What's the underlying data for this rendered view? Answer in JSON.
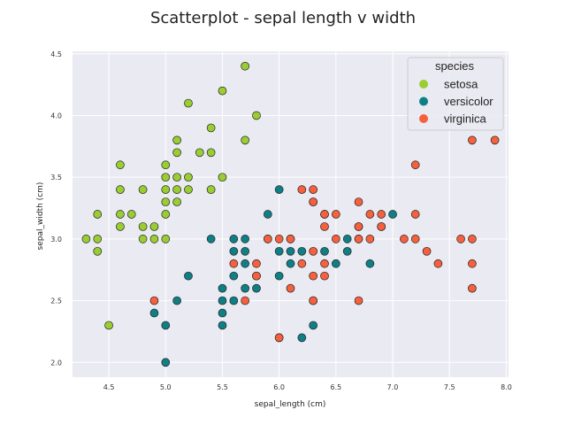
{
  "chart_data": {
    "type": "scatter",
    "title": "Scatterplot - sepal length v width",
    "xlabel": "sepal_length (cm)",
    "ylabel": "sepal_width (cm)",
    "xlim": [
      4.18,
      8.02
    ],
    "ylim": [
      1.88,
      4.52
    ],
    "xticks": [
      "4.5",
      "5.0",
      "5.5",
      "6.0",
      "6.5",
      "7.0",
      "7.5",
      "8.0"
    ],
    "yticks": [
      "2.0",
      "2.5",
      "3.0",
      "3.5",
      "4.0",
      "4.5"
    ],
    "grid": true,
    "legend": {
      "title": "species",
      "placement": "top-right"
    },
    "series": [
      {
        "name": "setosa",
        "color": "#9acd32",
        "points": [
          [
            4.3,
            3.0
          ],
          [
            4.4,
            3.0
          ],
          [
            4.4,
            2.9
          ],
          [
            4.4,
            3.2
          ],
          [
            4.5,
            2.3
          ],
          [
            4.6,
            3.1
          ],
          [
            4.6,
            3.4
          ],
          [
            4.6,
            3.6
          ],
          [
            4.6,
            3.2
          ],
          [
            4.7,
            3.2
          ],
          [
            4.8,
            3.4
          ],
          [
            4.8,
            3.0
          ],
          [
            4.8,
            3.1
          ],
          [
            4.9,
            3.0
          ],
          [
            4.9,
            3.1
          ],
          [
            5.0,
            3.6
          ],
          [
            5.0,
            3.4
          ],
          [
            5.0,
            3.0
          ],
          [
            5.0,
            3.5
          ],
          [
            5.0,
            3.2
          ],
          [
            5.0,
            3.3
          ],
          [
            5.1,
            3.5
          ],
          [
            5.1,
            3.8
          ],
          [
            5.1,
            3.7
          ],
          [
            5.1,
            3.3
          ],
          [
            5.1,
            3.4
          ],
          [
            5.2,
            3.5
          ],
          [
            5.2,
            3.4
          ],
          [
            5.2,
            4.1
          ],
          [
            5.3,
            3.7
          ],
          [
            5.4,
            3.9
          ],
          [
            5.4,
            3.7
          ],
          [
            5.4,
            3.4
          ],
          [
            5.5,
            4.2
          ],
          [
            5.5,
            3.5
          ],
          [
            5.7,
            4.4
          ],
          [
            5.7,
            3.8
          ],
          [
            5.8,
            4.0
          ]
        ]
      },
      {
        "name": "versicolor",
        "color": "#0f7f86",
        "points": [
          [
            4.9,
            2.4
          ],
          [
            5.0,
            2.0
          ],
          [
            5.0,
            2.3
          ],
          [
            5.1,
            2.5
          ],
          [
            5.2,
            2.7
          ],
          [
            5.4,
            3.0
          ],
          [
            5.5,
            2.3
          ],
          [
            5.5,
            2.4
          ],
          [
            5.5,
            2.5
          ],
          [
            5.5,
            2.6
          ],
          [
            5.6,
            2.9
          ],
          [
            5.6,
            3.0
          ],
          [
            5.6,
            2.5
          ],
          [
            5.6,
            2.7
          ],
          [
            5.7,
            2.8
          ],
          [
            5.7,
            2.6
          ],
          [
            5.7,
            3.0
          ],
          [
            5.7,
            2.9
          ],
          [
            5.8,
            2.7
          ],
          [
            5.8,
            2.6
          ],
          [
            5.9,
            3.0
          ],
          [
            5.9,
            3.2
          ],
          [
            6.0,
            2.2
          ],
          [
            6.0,
            2.9
          ],
          [
            6.0,
            2.7
          ],
          [
            6.0,
            3.4
          ],
          [
            6.1,
            2.9
          ],
          [
            6.1,
            2.8
          ],
          [
            6.1,
            3.0
          ],
          [
            6.2,
            2.2
          ],
          [
            6.2,
            2.9
          ],
          [
            6.3,
            3.3
          ],
          [
            6.3,
            2.5
          ],
          [
            6.3,
            2.3
          ],
          [
            6.4,
            2.9
          ],
          [
            6.4,
            3.2
          ],
          [
            6.5,
            2.8
          ],
          [
            6.6,
            2.9
          ],
          [
            6.6,
            3.0
          ],
          [
            6.7,
            3.1
          ],
          [
            6.7,
            3.0
          ],
          [
            6.8,
            2.8
          ],
          [
            6.9,
            3.1
          ],
          [
            7.0,
            3.2
          ]
        ]
      },
      {
        "name": "virginica",
        "color": "#f5603e",
        "points": [
          [
            4.9,
            2.5
          ],
          [
            5.6,
            2.8
          ],
          [
            5.7,
            2.5
          ],
          [
            5.8,
            2.7
          ],
          [
            5.8,
            2.8
          ],
          [
            5.9,
            3.0
          ],
          [
            6.0,
            3.0
          ],
          [
            6.0,
            2.2
          ],
          [
            6.1,
            3.0
          ],
          [
            6.1,
            2.6
          ],
          [
            6.2,
            3.4
          ],
          [
            6.2,
            2.8
          ],
          [
            6.3,
            3.3
          ],
          [
            6.3,
            2.9
          ],
          [
            6.3,
            2.7
          ],
          [
            6.3,
            2.5
          ],
          [
            6.3,
            3.4
          ],
          [
            6.4,
            3.2
          ],
          [
            6.4,
            2.8
          ],
          [
            6.4,
            3.1
          ],
          [
            6.4,
            2.7
          ],
          [
            6.5,
            3.0
          ],
          [
            6.5,
            3.2
          ],
          [
            6.7,
            3.3
          ],
          [
            6.7,
            3.1
          ],
          [
            6.7,
            3.0
          ],
          [
            6.7,
            2.5
          ],
          [
            6.8,
            3.0
          ],
          [
            6.8,
            3.2
          ],
          [
            6.9,
            3.1
          ],
          [
            6.9,
            3.2
          ],
          [
            7.1,
            3.0
          ],
          [
            7.2,
            3.6
          ],
          [
            7.2,
            3.0
          ],
          [
            7.2,
            3.2
          ],
          [
            7.3,
            2.9
          ],
          [
            7.4,
            2.8
          ],
          [
            7.6,
            3.0
          ],
          [
            7.7,
            3.8
          ],
          [
            7.7,
            2.6
          ],
          [
            7.7,
            2.8
          ],
          [
            7.7,
            3.0
          ],
          [
            7.9,
            3.8
          ]
        ]
      }
    ]
  }
}
